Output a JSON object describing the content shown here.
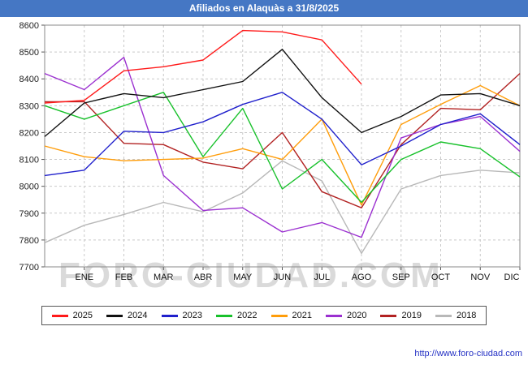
{
  "header": {
    "title": "Afiliados en Alaquàs a 31/8/2025",
    "background_color": "#4577c4"
  },
  "watermark": {
    "text": "FORO-CIUDAD.COM"
  },
  "footer": {
    "url": "http://www.foro-ciudad.com"
  },
  "chart_data": {
    "type": "line",
    "title": "Afiliados en Alaquàs a 31/8/2025",
    "categories": [
      "ENE",
      "FEB",
      "MAR",
      "ABR",
      "MAY",
      "JUN",
      "JUL",
      "AGO",
      "SEP",
      "OCT",
      "NOV",
      "DIC"
    ],
    "ylim": [
      7700,
      8600
    ],
    "ytick_step": 100,
    "yticks": [
      7700,
      7800,
      7900,
      8000,
      8100,
      8200,
      8300,
      8400,
      8500,
      8600
    ],
    "grid": true,
    "legend_position": "bottom",
    "series": [
      {
        "name": "2025",
        "color": "#ff1a1a",
        "start": 8310,
        "values": [
          8320,
          8430,
          8445,
          8470,
          8580,
          8575,
          8545,
          8380
        ]
      },
      {
        "name": "2024",
        "color": "#111111",
        "start": 8185,
        "values": [
          8310,
          8345,
          8330,
          8360,
          8390,
          8510,
          8330,
          8200,
          8260,
          8340,
          8345,
          8300
        ]
      },
      {
        "name": "2023",
        "color": "#2020cc",
        "start": 8040,
        "values": [
          8060,
          8205,
          8200,
          8240,
          8305,
          8350,
          8250,
          8080,
          8150,
          8230,
          8270,
          8155
        ]
      },
      {
        "name": "2022",
        "color": "#18c12b",
        "start": 8300,
        "values": [
          8250,
          8300,
          8350,
          8110,
          8290,
          7990,
          8100,
          7940,
          8100,
          8165,
          8140,
          8035
        ]
      },
      {
        "name": "2021",
        "color": "#ff9d0a",
        "start": 8150,
        "values": [
          8110,
          8095,
          8100,
          8105,
          8140,
          8100,
          8250,
          7930,
          8230,
          8305,
          8375,
          8300
        ]
      },
      {
        "name": "2020",
        "color": "#9b30d0",
        "start": 8420,
        "values": [
          8360,
          8480,
          8040,
          7910,
          7920,
          7830,
          7865,
          7810,
          8180,
          8230,
          8260,
          8130
        ]
      },
      {
        "name": "2019",
        "color": "#b22222",
        "start": 8315,
        "values": [
          8315,
          8160,
          8155,
          8090,
          8065,
          8200,
          7980,
          7920,
          8155,
          8290,
          8285,
          8420
        ]
      },
      {
        "name": "2018",
        "color": "#b8b8b8",
        "start": 7790,
        "values": [
          7855,
          7895,
          7940,
          7905,
          7975,
          8095,
          8020,
          7750,
          7990,
          8040,
          8060,
          8050
        ]
      }
    ]
  }
}
